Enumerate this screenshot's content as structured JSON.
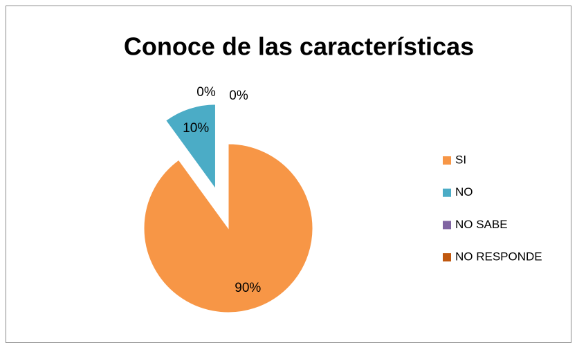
{
  "chart_data": {
    "type": "pie",
    "title": "Conoce de las características",
    "categories": [
      "SI",
      "NO",
      "NO SABE",
      "NO RESPONDE"
    ],
    "values": [
      90,
      10,
      0,
      0
    ],
    "value_labels": [
      "90%",
      "10%",
      "0%",
      "0%"
    ],
    "colors": [
      "#f79646",
      "#4bacc6",
      "#8064a2",
      "#c0580f"
    ],
    "legend": "right"
  }
}
